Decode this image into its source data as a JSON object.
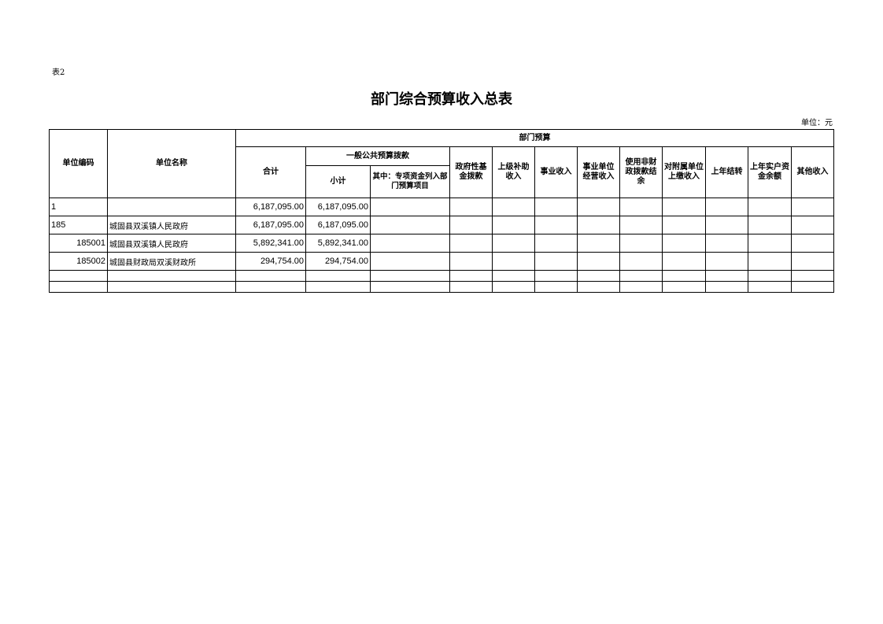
{
  "doc": {
    "label": "表2",
    "title": "部门综合预算收入总表",
    "unit": "单位：元"
  },
  "headers": {
    "code": "单位编码",
    "name": "单位名称",
    "dept_budget": "部门预算",
    "total": "合计",
    "general": "一般公共预算拨款",
    "subtotal": "小计",
    "special": "其中：专项资金列入部门预算项目",
    "cols": [
      "政府性基金拨款",
      "上级补助收入",
      "事业收入",
      "事业单位经营收入",
      "使用非财政拨款结余",
      "对附属单位上缴收入",
      "上年结转",
      "上年实户资金余额",
      "其他收入"
    ]
  },
  "rows": [
    {
      "code": "1",
      "name": "",
      "total": "6,187,095.00",
      "subtotal": "6,187,095.00"
    },
    {
      "code": "185",
      "name": "城固县双溪镇人民政府",
      "total": "6,187,095.00",
      "subtotal": "6,187,095.00"
    },
    {
      "code": "185001",
      "name": "城固县双溪镇人民政府",
      "total": "5,892,341.00",
      "subtotal": "5,892,341.00",
      "indent": true
    },
    {
      "code": "185002",
      "name": "城固县财政局双溪财政所",
      "total": "294,754.00",
      "subtotal": "294,754.00",
      "indent": true
    },
    {
      "code": "",
      "name": "",
      "total": "",
      "subtotal": ""
    },
    {
      "code": "",
      "name": "",
      "total": "",
      "subtotal": ""
    }
  ]
}
